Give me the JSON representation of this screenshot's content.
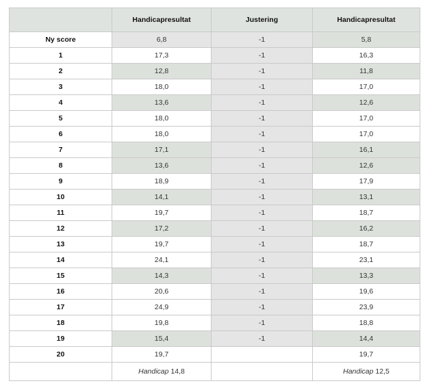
{
  "headers": [
    "",
    "Handicapresultat",
    "Justering",
    "Handicapresultat"
  ],
  "rows": [
    {
      "label": "Ny score",
      "before": "6,8",
      "adj": "-1",
      "after": "5,8",
      "highlight": true
    },
    {
      "label": "1",
      "before": "17,3",
      "adj": "-1",
      "after": "16,3",
      "highlight": false
    },
    {
      "label": "2",
      "before": "12,8",
      "adj": "-1",
      "after": "11,8",
      "highlight": true
    },
    {
      "label": "3",
      "before": "18,0",
      "adj": "-1",
      "after": "17,0",
      "highlight": false
    },
    {
      "label": "4",
      "before": "13,6",
      "adj": "-1",
      "after": "12,6",
      "highlight": true
    },
    {
      "label": "5",
      "before": "18,0",
      "adj": "-1",
      "after": "17,0",
      "highlight": false
    },
    {
      "label": "6",
      "before": "18,0",
      "adj": "-1",
      "after": "17,0",
      "highlight": false
    },
    {
      "label": "7",
      "before": "17,1",
      "adj": "-1",
      "after": "16,1",
      "highlight": true
    },
    {
      "label": "8",
      "before": "13,6",
      "adj": "-1",
      "after": "12,6",
      "highlight": true
    },
    {
      "label": "9",
      "before": "18,9",
      "adj": "-1",
      "after": "17,9",
      "highlight": false
    },
    {
      "label": "10",
      "before": "14,1",
      "adj": "-1",
      "after": "13,1",
      "highlight": true
    },
    {
      "label": "11",
      "before": "19,7",
      "adj": "-1",
      "after": "18,7",
      "highlight": false
    },
    {
      "label": "12",
      "before": "17,2",
      "adj": "-1",
      "after": "16,2",
      "highlight": true
    },
    {
      "label": "13",
      "before": "19,7",
      "adj": "-1",
      "after": "18,7",
      "highlight": false
    },
    {
      "label": "14",
      "before": "24,1",
      "adj": "-1",
      "after": "23,1",
      "highlight": false
    },
    {
      "label": "15",
      "before": "14,3",
      "adj": "-1",
      "after": "13,3",
      "highlight": true
    },
    {
      "label": "16",
      "before": "20,6",
      "adj": "-1",
      "after": "19,6",
      "highlight": false
    },
    {
      "label": "17",
      "before": "24,9",
      "adj": "-1",
      "after": "23,9",
      "highlight": false
    },
    {
      "label": "18",
      "before": "19,8",
      "adj": "-1",
      "after": "18,8",
      "highlight": false
    },
    {
      "label": "19",
      "before": "15,4",
      "adj": "-1",
      "after": "14,4",
      "highlight": true
    },
    {
      "label": "20",
      "before": "19,7",
      "adj": "",
      "after": "19,7",
      "highlight": false
    }
  ],
  "footer": {
    "before_label": "Handicap",
    "before_value": "14,8",
    "after_label": "Handicap",
    "after_value": "12,5"
  },
  "colors": {
    "header": "#dfe3df",
    "highlight": "#dde1dc",
    "adjust_column": "#e5e5e5",
    "border": "#c9c9c9"
  }
}
